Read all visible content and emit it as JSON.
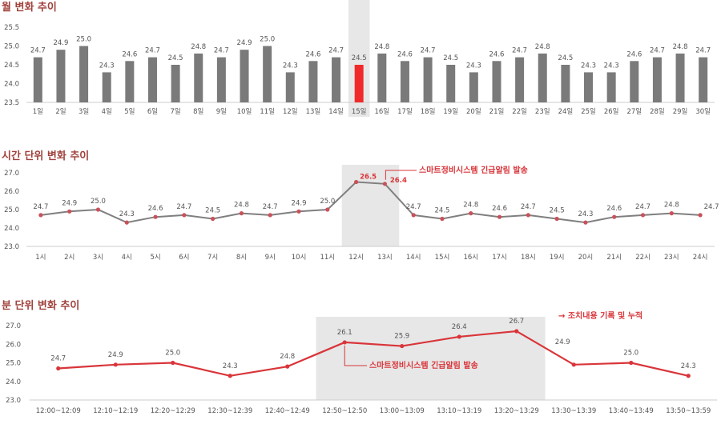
{
  "colors": {
    "title": "#a0413b",
    "bar": "#7a7a7a",
    "bar_highlight": "#f02a2a",
    "line_gray": "#7f7f7f",
    "line_red": "#d9353a",
    "marker": "#c9515a",
    "highlight_band": "#e7e7e7",
    "axis": "#cccccc"
  },
  "chart_data": [
    {
      "type": "bar",
      "title": "월 변화 추이",
      "categories": [
        "1일",
        "2일",
        "3일",
        "4일",
        "5일",
        "6일",
        "7일",
        "8일",
        "9일",
        "10일",
        "11일",
        "12일",
        "13일",
        "14일",
        "15일",
        "16일",
        "17일",
        "18일",
        "19일",
        "20일",
        "21일",
        "22일",
        "23일",
        "24일",
        "25일",
        "26일",
        "27일",
        "28일",
        "29일",
        "30일"
      ],
      "values": [
        24.7,
        24.9,
        25.0,
        24.3,
        24.6,
        24.7,
        24.5,
        24.8,
        24.7,
        24.9,
        25.0,
        24.3,
        24.6,
        24.7,
        24.5,
        24.8,
        24.6,
        24.7,
        24.5,
        24.3,
        24.6,
        24.7,
        24.8,
        24.5,
        24.3,
        24.3,
        24.6,
        24.7,
        24.8,
        24.7
      ],
      "value_labels": [
        "24.7",
        "24.9",
        "25.0",
        "24.3",
        "24.6",
        "24.7",
        "24.5",
        "24.8",
        "24.7",
        "24.9",
        "25.0",
        "24.3",
        "24.6",
        "24.7",
        "24.5",
        "24.8",
        "24.6",
        "24.7",
        "24.5",
        "24.3",
        "24.6",
        "24.7",
        "24.8",
        "24.5",
        "24.3",
        "24.3",
        "24.6",
        "24.7",
        "24.8",
        "24.7"
      ],
      "ylim": [
        23.5,
        25.5
      ],
      "yticks": [
        "23.5",
        "24.0",
        "24.5",
        "25.0",
        "25.5"
      ],
      "highlight_index": 14
    },
    {
      "type": "line",
      "title": "시간 단위 변화 추이",
      "categories": [
        "1시",
        "2시",
        "3시",
        "4시",
        "5시",
        "6시",
        "7시",
        "8시",
        "9시",
        "10시",
        "11시",
        "12시",
        "13시",
        "14시",
        "15시",
        "16시",
        "17시",
        "18시",
        "19시",
        "20시",
        "21시",
        "22시",
        "23시",
        "24시"
      ],
      "values": [
        24.7,
        24.9,
        25.0,
        24.3,
        24.6,
        24.7,
        24.5,
        24.8,
        24.7,
        24.9,
        25.0,
        26.5,
        26.4,
        24.7,
        24.5,
        24.8,
        24.6,
        24.7,
        24.5,
        24.3,
        24.6,
        24.7,
        24.8,
        24.7
      ],
      "value_labels": [
        "24.7",
        "24.9",
        "25.0",
        "24.3",
        "24.6",
        "24.7",
        "24.5",
        "24.8",
        "24.7",
        "24.9",
        "25.0",
        "26.5",
        "26.4",
        "24.7",
        "24.5",
        "24.8",
        "24.6",
        "24.7",
        "24.5",
        "24.3",
        "24.6",
        "24.7",
        "24.8",
        "24.7"
      ],
      "ylim": [
        23.0,
        27.0
      ],
      "yticks": [
        "23.0",
        "24.0",
        "25.0",
        "26.0",
        "27.0"
      ],
      "highlight_range": [
        "12시",
        "13시"
      ],
      "annotation": "스마트정비시스템   긴급알림  발송"
    },
    {
      "type": "line",
      "title": "분 단위 변화 추이",
      "categories": [
        "12:00~12:09",
        "12:10~12:19",
        "12:20~12:29",
        "12:30~12:39",
        "12:40~12:49",
        "12:50~12:50",
        "13:00~13:09",
        "13:10~13:19",
        "13:20~13:29",
        "13:30~13:39",
        "13:40~13:49",
        "13:50~13:59"
      ],
      "values": [
        24.7,
        24.9,
        25.0,
        24.3,
        24.8,
        26.1,
        25.9,
        26.4,
        26.7,
        24.9,
        25.0,
        24.3
      ],
      "value_labels": [
        "24.7",
        "24.9",
        "25.0",
        "24.3",
        "24.8",
        "26.1",
        "25.9",
        "26.4",
        "26.7",
        "24.9",
        "25.0",
        "24.3"
      ],
      "ylim": [
        23.0,
        27.0
      ],
      "yticks": [
        "23.0",
        "24.0",
        "25.0",
        "26.0",
        "27.0"
      ],
      "highlight_range": [
        "12:50~12:50",
        "13:20~13:29"
      ],
      "annotations": [
        "→ 조치내용  기록  및  누적",
        "스마트정비시스템    긴급알림   발송"
      ]
    }
  ]
}
